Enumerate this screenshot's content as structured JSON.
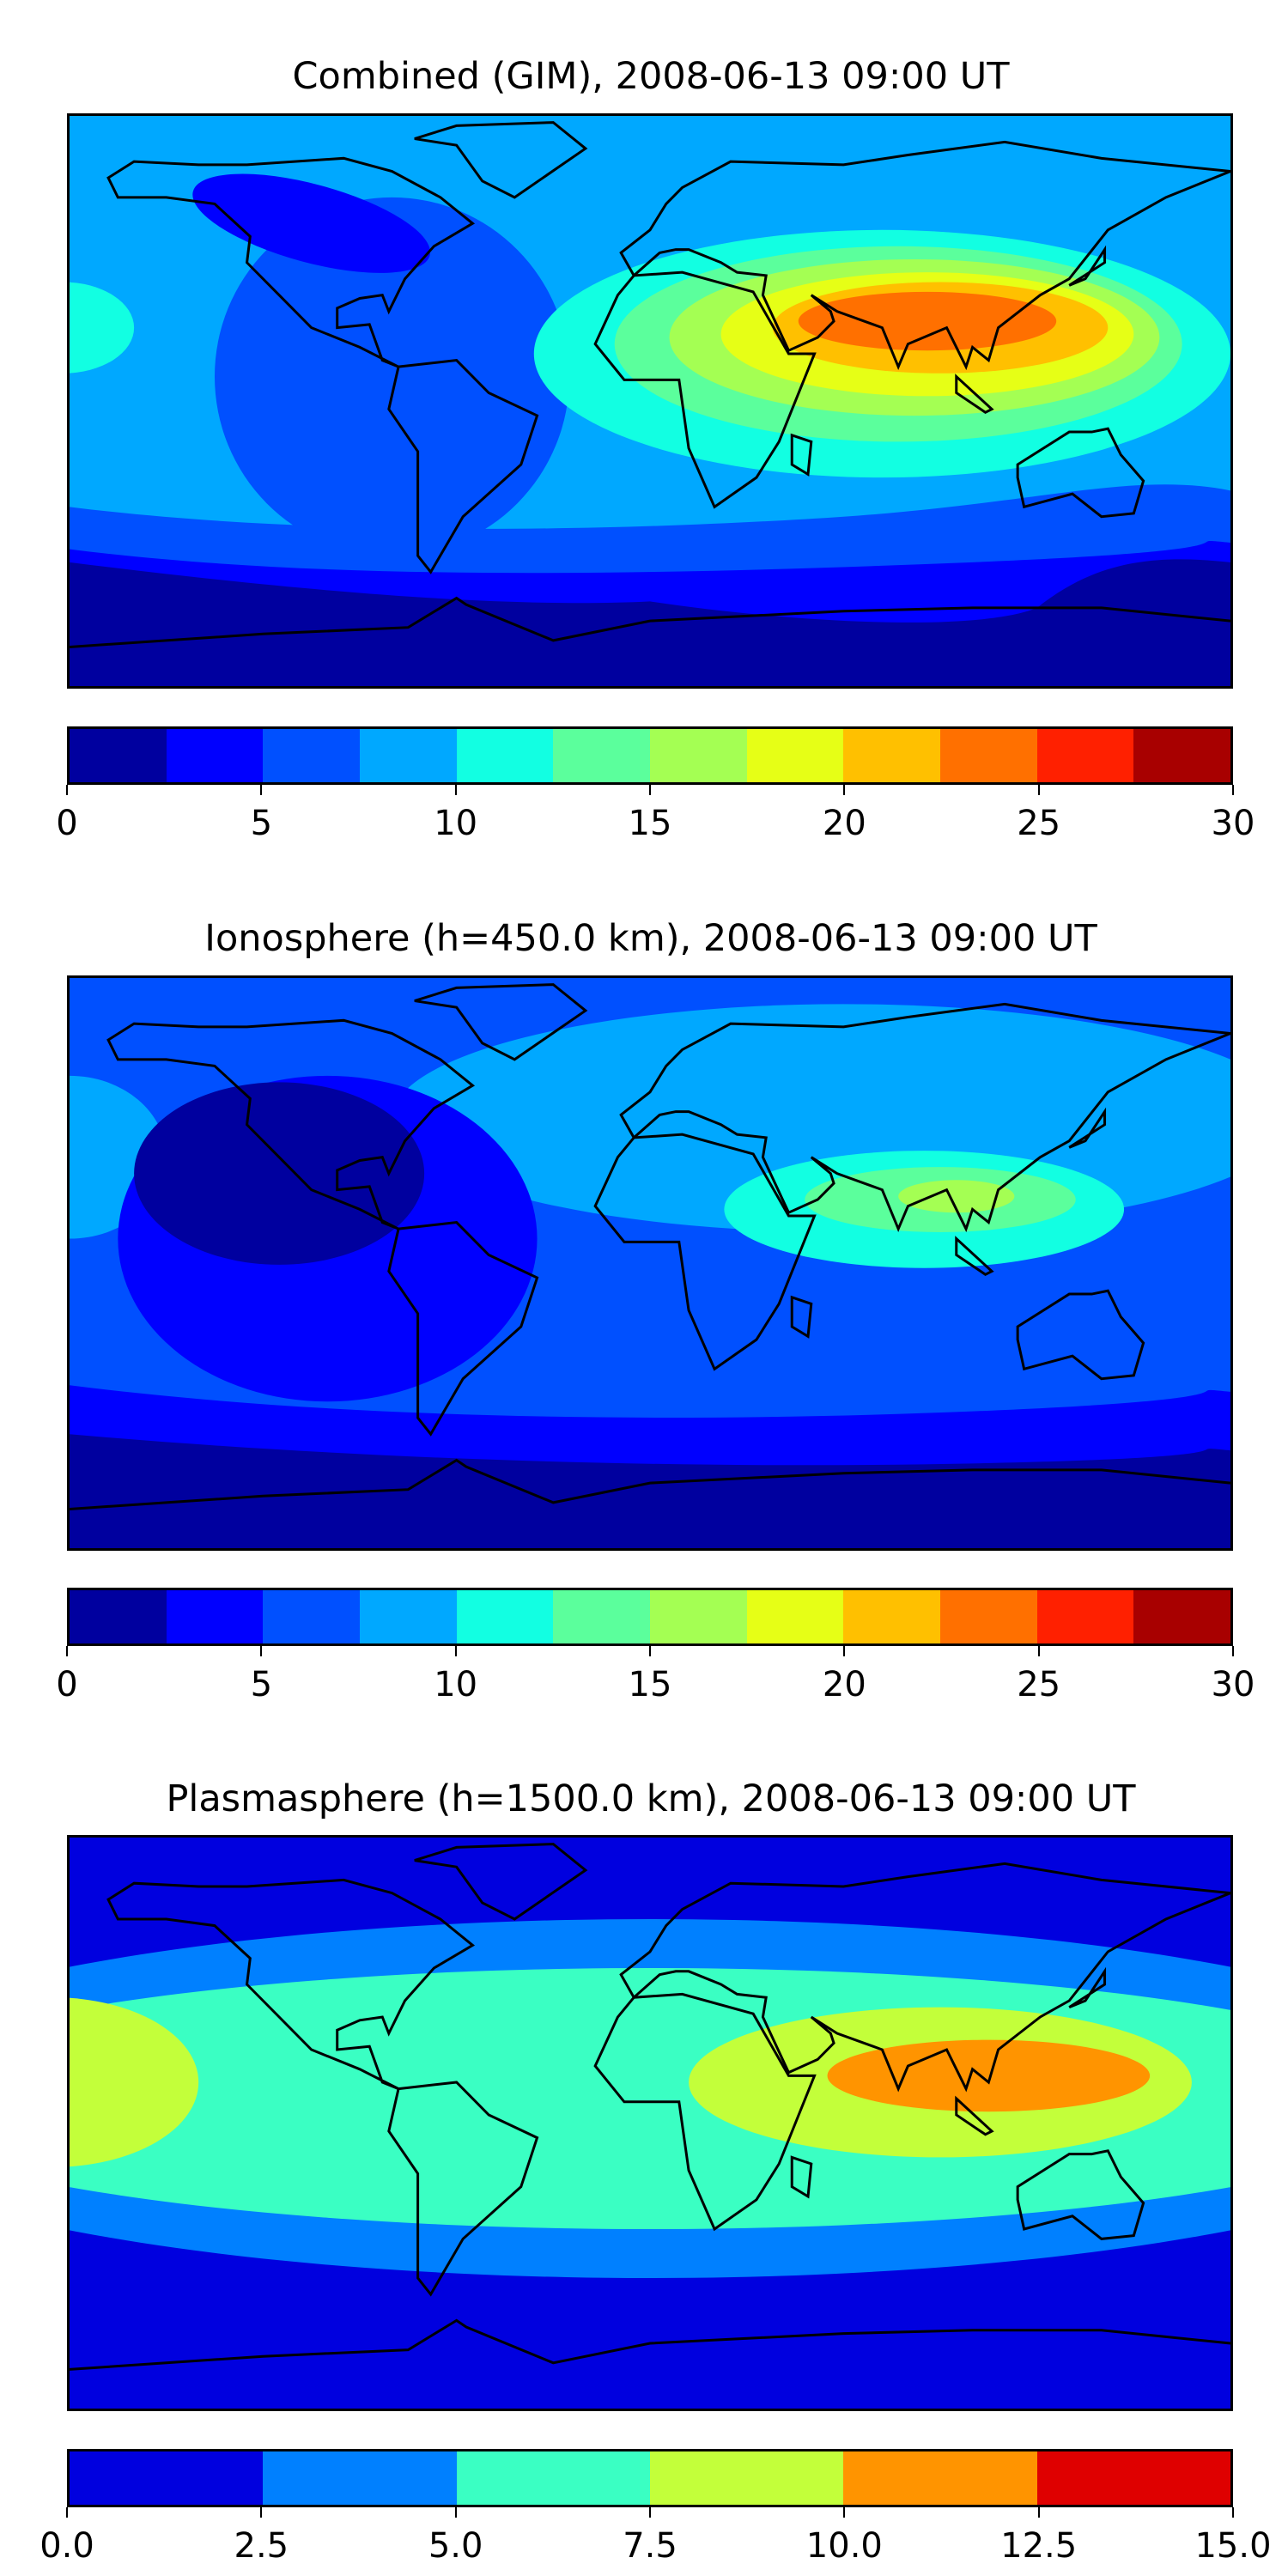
{
  "chart_data": [
    {
      "type": "heatmap",
      "title": "Combined (GIM), 2008-06-13 09:00 UT",
      "colorbar": {
        "levels": [
          0,
          2.5,
          5,
          7.5,
          10,
          12.5,
          15,
          17.5,
          20,
          22.5,
          25,
          27.5,
          30
        ],
        "colors": [
          "#00009f",
          "#0000ff",
          "#0050ff",
          "#00a8ff",
          "#12ffe2",
          "#5bff9c",
          "#a4ff53",
          "#e6ff16",
          "#ffc000",
          "#ff7000",
          "#ff2000",
          "#a80000"
        ],
        "tick_labels": [
          "0",
          "5",
          "10",
          "15",
          "20",
          "25",
          "30"
        ],
        "tick_values": [
          0,
          5,
          10,
          15,
          20,
          25,
          30
        ],
        "range": [
          0,
          30
        ]
      },
      "peak_region": "South/Southeast Asia, about 22.5-25",
      "grid": false
    },
    {
      "type": "heatmap",
      "title": "Ionosphere  (h=450.0 km), 2008-06-13 09:00 UT",
      "colorbar": {
        "levels": [
          0,
          2.5,
          5,
          7.5,
          10,
          12.5,
          15,
          17.5,
          20,
          22.5,
          25,
          27.5,
          30
        ],
        "colors": [
          "#00009f",
          "#0000ff",
          "#0050ff",
          "#00a8ff",
          "#12ffe2",
          "#5bff9c",
          "#a4ff53",
          "#e6ff16",
          "#ffc000",
          "#ff7000",
          "#ff2000",
          "#a80000"
        ],
        "tick_labels": [
          "0",
          "5",
          "10",
          "15",
          "20",
          "25",
          "30"
        ],
        "tick_values": [
          0,
          5,
          10,
          15,
          20,
          25,
          30
        ],
        "range": [
          0,
          30
        ]
      },
      "peak_region": "India/Southeast Asia, about 15-17.5",
      "grid": false
    },
    {
      "type": "heatmap",
      "title": "Plasmasphere (h=1500.0 km), 2008-06-13 09:00 UT",
      "colorbar": {
        "levels": [
          0,
          2.5,
          5,
          7.5,
          10,
          12.5,
          15
        ],
        "colors": [
          "#0000df",
          "#0080ff",
          "#3affc3",
          "#c3ff3a",
          "#ff9400",
          "#df0000"
        ],
        "tick_labels": [
          "0.0",
          "2.5",
          "5.0",
          "7.5",
          "10.0",
          "12.5",
          "15.0"
        ],
        "tick_values": [
          0,
          2.5,
          5,
          7.5,
          10,
          12.5,
          15
        ],
        "range": [
          0,
          15
        ]
      },
      "peak_region": "Southeast Asia/Western Pacific, about 10-12.5",
      "grid": false
    }
  ]
}
